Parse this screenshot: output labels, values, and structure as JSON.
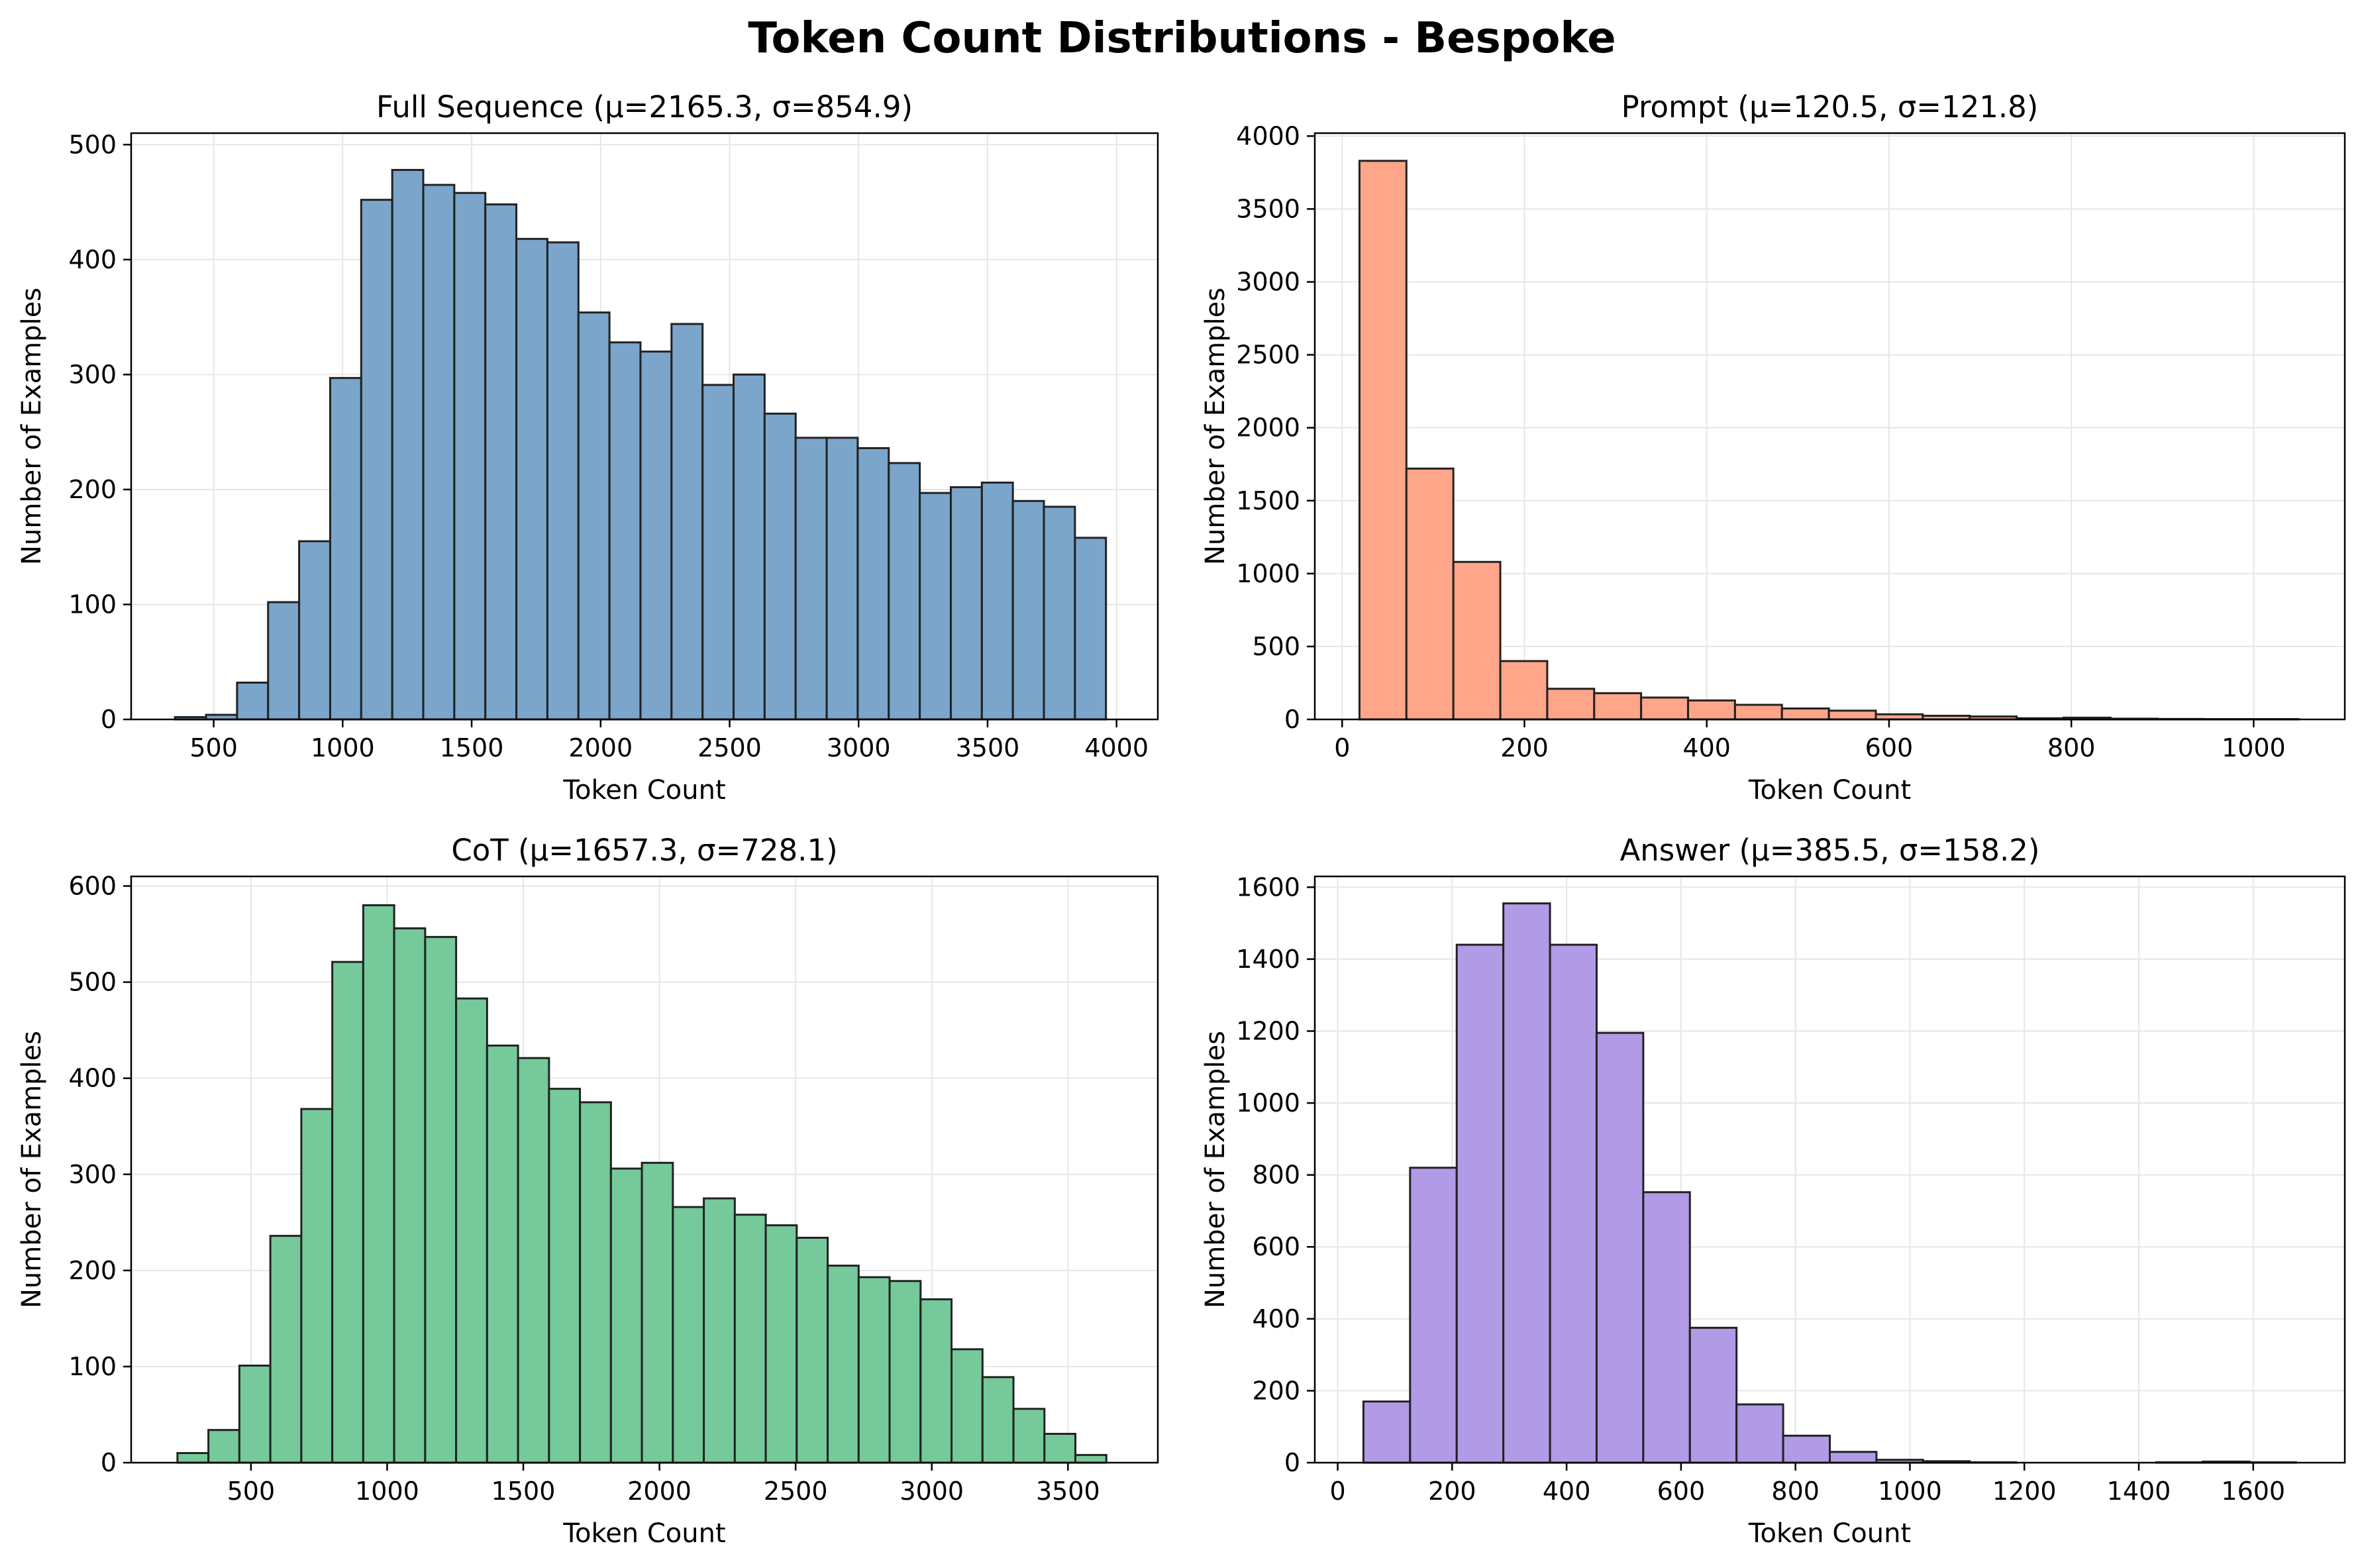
{
  "figure_title": "Token Count Distributions - Bespoke",
  "colors": {
    "full": "#7BA5CB",
    "prompt": "#FFA589",
    "cot": "#76C99A",
    "answer": "#B19BE6",
    "edge": "#222222",
    "grid": "#e6e6e6"
  },
  "chart_data": [
    {
      "type": "bar",
      "id": "full",
      "title": "Full Sequence (μ=2165.3, σ=854.9)",
      "xlabel": "Token Count",
      "ylabel": "Number of Examples",
      "xlim": [
        180,
        4160
      ],
      "ylim": [
        0,
        510
      ],
      "xticks": [
        500,
        1000,
        1500,
        2000,
        2500,
        3000,
        3500,
        4000
      ],
      "yticks": [
        0,
        100,
        200,
        300,
        400,
        500
      ],
      "bin_start": 350,
      "bin_width": 120.3,
      "values": [
        2,
        4,
        32,
        102,
        155,
        297,
        452,
        478,
        465,
        458,
        448,
        418,
        415,
        354,
        328,
        320,
        344,
        291,
        300,
        266,
        245,
        245,
        236,
        223,
        197,
        202,
        206,
        190,
        185,
        158
      ],
      "grid": true
    },
    {
      "type": "bar",
      "id": "prompt",
      "title": "Prompt (μ=120.5, σ=121.8)",
      "xlabel": "Token Count",
      "ylabel": "Number of Examples",
      "xlim": [
        -30,
        1100
      ],
      "ylim": [
        0,
        4020
      ],
      "xticks": [
        0,
        200,
        400,
        600,
        800,
        1000
      ],
      "yticks": [
        0,
        500,
        1000,
        1500,
        2000,
        2500,
        3000,
        3500,
        4000
      ],
      "bin_start": 19,
      "bin_width": 51.5,
      "values": [
        3830,
        1720,
        1080,
        400,
        210,
        180,
        150,
        130,
        100,
        75,
        60,
        35,
        25,
        20,
        8,
        12,
        5,
        3,
        2,
        2
      ],
      "grid": true
    },
    {
      "type": "bar",
      "id": "cot",
      "title": "CoT (μ=1657.3, σ=728.1)",
      "xlabel": "Token Count",
      "ylabel": "Number of Examples",
      "xlim": [
        60,
        3830
      ],
      "ylim": [
        0,
        610
      ],
      "xticks": [
        500,
        1000,
        1500,
        2000,
        2500,
        3000,
        3500
      ],
      "yticks": [
        0,
        100,
        200,
        300,
        400,
        500,
        600
      ],
      "bin_start": 230,
      "bin_width": 113.7,
      "values": [
        10,
        34,
        101,
        236,
        368,
        521,
        580,
        556,
        547,
        483,
        434,
        421,
        389,
        375,
        306,
        312,
        266,
        275,
        258,
        247,
        234,
        205,
        193,
        189,
        170,
        118,
        89,
        56,
        30,
        8
      ],
      "grid": true
    },
    {
      "type": "bar",
      "id": "answer",
      "title": "Answer (μ=385.5, σ=158.2)",
      "xlabel": "Token Count",
      "ylabel": "Number of Examples",
      "xlim": [
        -40,
        1760
      ],
      "ylim": [
        0,
        1630
      ],
      "xticks": [
        0,
        200,
        400,
        600,
        800,
        1000,
        1200,
        1400,
        1600
      ],
      "yticks": [
        0,
        200,
        400,
        600,
        800,
        1000,
        1200,
        1400,
        1600
      ],
      "bin_start": 45,
      "bin_width": 81.5,
      "values": [
        170,
        820,
        1440,
        1555,
        1440,
        1195,
        752,
        375,
        162,
        75,
        30,
        8,
        4,
        1,
        0,
        0,
        0,
        1,
        3,
        1
      ],
      "grid": true
    }
  ]
}
